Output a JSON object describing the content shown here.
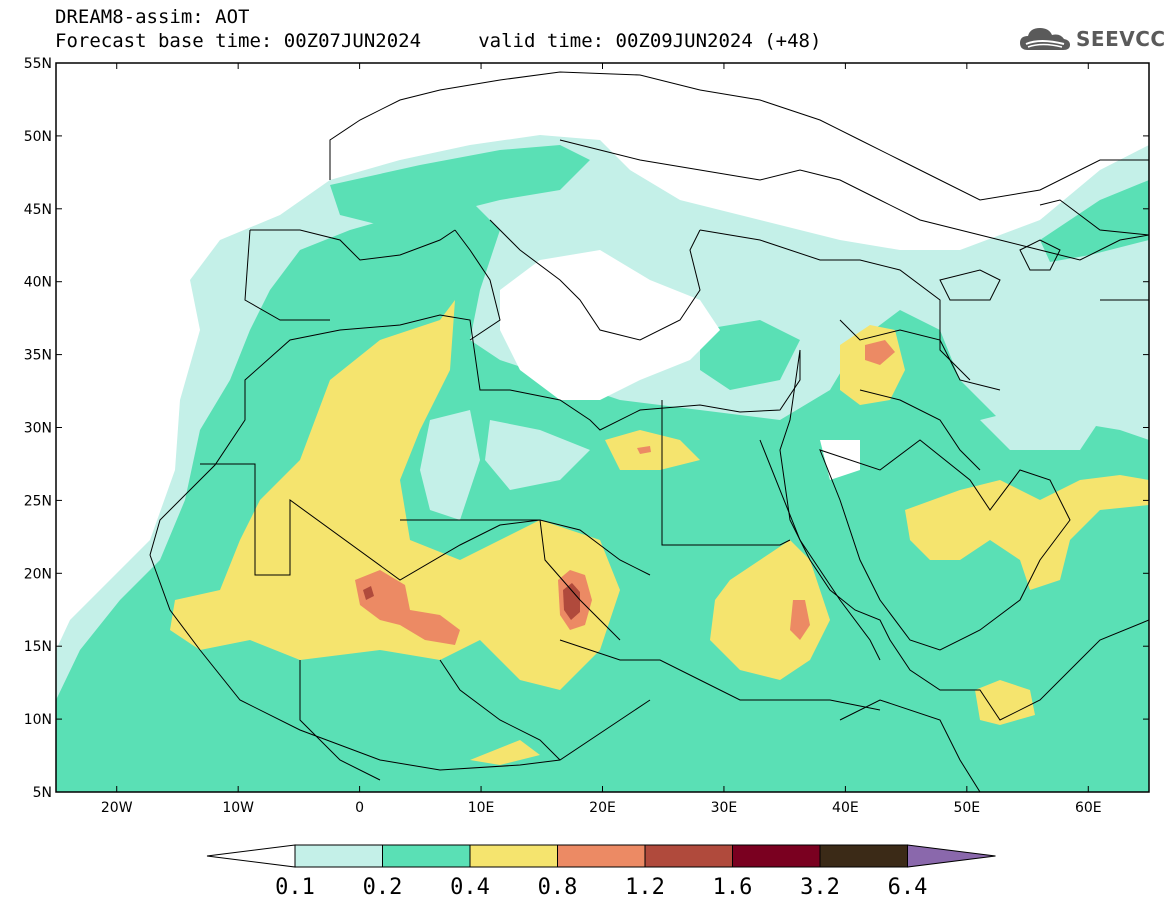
{
  "header": {
    "title_line1": "DREAM8-assim: AOT",
    "title_line2": "Forecast base time: 00Z07JUN2024     valid time: 00Z09JUN2024 (+48)"
  },
  "logo": {
    "text": "SEEVCCC",
    "icon": "cloud-logo-icon"
  },
  "map": {
    "lat_labels": [
      "55N",
      "50N",
      "45N",
      "40N",
      "35N",
      "30N",
      "25N",
      "20N",
      "15N",
      "10N",
      "5N"
    ],
    "lon_labels": [
      "20W",
      "10W",
      "0",
      "10E",
      "20E",
      "30E",
      "40E",
      "50E",
      "60E"
    ],
    "extent": {
      "lon_min": -25,
      "lon_max": 65,
      "lat_min": 5,
      "lat_max": 55
    }
  },
  "colorbar": {
    "colors": [
      "#c4f0e8",
      "#5ae0b5",
      "#f5e46e",
      "#ec8a64",
      "#b04a3c",
      "#7a0020",
      "#3b2a17",
      "#8a68ac"
    ],
    "under_color": "#ffffff",
    "labels": [
      "0.1",
      "0.2",
      "0.4",
      "0.8",
      "1.2",
      "1.6",
      "3.2",
      "6.4"
    ]
  }
}
